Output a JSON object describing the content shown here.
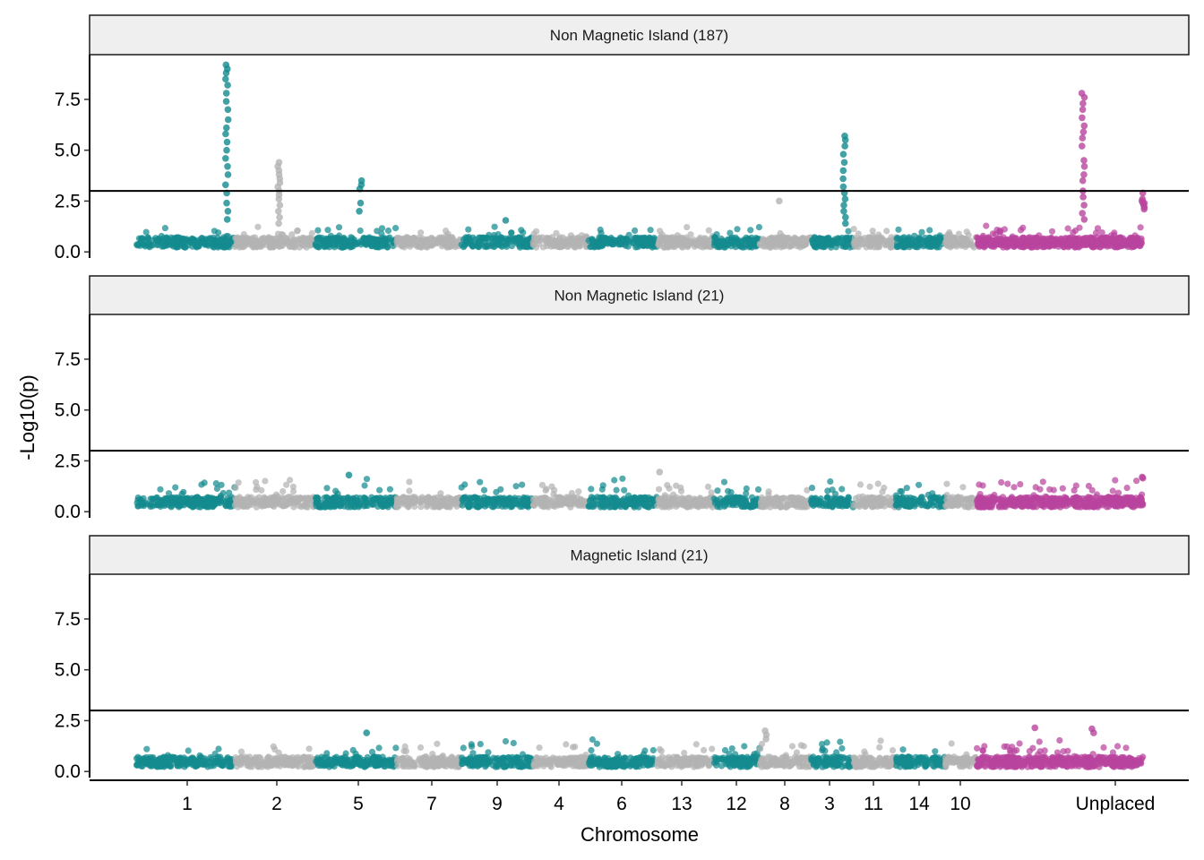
{
  "chart_data": {
    "type": "scatter",
    "subtype": "manhattan",
    "xlabel": "Chromosome",
    "ylabel": "-Log10(p)",
    "ylim": [
      -0.3,
      9.7
    ],
    "yticks": [
      "0.0",
      "2.5",
      "5.0",
      "7.5"
    ],
    "grid": false,
    "legend": "none",
    "threshold": 3.0,
    "colors": {
      "teal": "#138a8f",
      "grey": "#b3b3b3",
      "magenta": "#b8449e"
    },
    "chromosomes": [
      {
        "label": "1",
        "span": [
          0.0,
          1.0
        ],
        "color": "teal",
        "tick": 0.5
      },
      {
        "label": "2",
        "span": [
          1.0,
          2.0
        ],
        "color": "grey",
        "tick": 1.5
      },
      {
        "label": "5",
        "span": [
          2.0,
          3.0
        ],
        "color": "teal",
        "tick": 2.5
      },
      {
        "label": "7",
        "span": [
          3.0,
          4.0
        ],
        "color": "grey",
        "tick": 3.5
      },
      {
        "label": "9",
        "span": [
          4.0,
          5.0
        ],
        "color": "teal",
        "tick": 4.5
      },
      {
        "label": "4",
        "span": [
          5.0,
          6.0
        ],
        "color": "grey",
        "tick": 5.5
      },
      {
        "label": "6",
        "span": [
          6.0,
          7.0
        ],
        "color": "teal",
        "tick": 6.5
      },
      {
        "label": "13",
        "span": [
          7.0,
          8.0
        ],
        "color": "grey",
        "tick": 7.5
      },
      {
        "label": "12",
        "span": [
          8.0,
          9.0
        ],
        "color": "teal",
        "tick": 8.5
      },
      {
        "label": "8",
        "span": [
          9.0,
          10.0
        ],
        "color": "grey",
        "tick": 9.5
      },
      {
        "label": "3",
        "span": [
          10.0,
          11.0
        ],
        "color": "teal",
        "tick": 10.5
      },
      {
        "label": "11",
        "span": [
          11.0,
          12.0
        ],
        "color": "grey",
        "tick": 11.5
      },
      {
        "label": "14",
        "span": [
          12.0,
          13.0
        ],
        "color": "teal",
        "tick": 12.5
      },
      {
        "label": "10",
        "span": [
          13.0,
          14.0
        ],
        "color": "grey",
        "tick": 13.5
      },
      {
        "label": "Unplaced",
        "span": [
          14.0,
          15.0
        ],
        "color": "magenta",
        "tick": 14.5
      }
    ],
    "panels": [
      {
        "title": "Non Magnetic Island (187)",
        "baseline_max": 1.3,
        "peaks": [
          {
            "chrom": "1",
            "x": 0.92,
            "values": [
              9.2,
              9.0,
              8.8,
              8.5,
              8.2,
              7.8,
              7.4,
              7.0,
              6.5,
              6.1,
              5.8,
              5.4,
              5.0,
              4.6,
              4.2,
              3.8,
              3.3,
              2.9,
              2.4,
              2.0,
              1.6
            ]
          },
          {
            "chrom": "2",
            "x": 1.55,
            "values": [
              4.4,
              4.2,
              4.0,
              3.8,
              3.6,
              3.4,
              3.2,
              3.0,
              2.8,
              2.6,
              2.3,
              2.0,
              1.7,
              1.4
            ]
          },
          {
            "chrom": "5",
            "x": 2.56,
            "values": [
              3.5,
              3.3,
              3.1,
              2.4,
              2.0
            ]
          },
          {
            "chrom": "9",
            "x": 4.62,
            "values": [
              1.55
            ]
          },
          {
            "chrom": "8",
            "x": 9.38,
            "values": [
              2.5
            ]
          },
          {
            "chrom": "3",
            "x": 10.78,
            "values": [
              5.7,
              5.5,
              5.2,
              4.8,
              4.4,
              4.0,
              3.6,
              3.2,
              2.9,
              2.6,
              2.3,
              2.0,
              1.7,
              1.4
            ]
          },
          {
            "chrom": "Unplaced",
            "x": 14.64,
            "values": [
              7.8,
              7.6,
              7.3,
              7.0,
              6.6,
              6.2,
              5.9,
              5.6,
              5.2,
              4.5,
              4.2,
              3.8,
              3.5,
              3.0,
              2.7,
              2.3,
              1.9,
              1.6
            ]
          },
          {
            "chrom": "Unplaced",
            "x": 15.12,
            "values": [
              2.9,
              2.6,
              2.5,
              2.4,
              2.4,
              2.3,
              2.2,
              2.1
            ]
          }
        ]
      },
      {
        "title": "Non Magnetic Island (21)",
        "baseline_max": 1.7,
        "peaks": [
          {
            "chrom": "5",
            "x": 2.4,
            "values": [
              1.8
            ]
          },
          {
            "chrom": "13",
            "x": 7.05,
            "values": [
              1.95
            ]
          },
          {
            "chrom": "Unplaced",
            "x": 15.05,
            "values": [
              1.7,
              1.65
            ]
          }
        ]
      },
      {
        "title": "Magnetic Island (21)",
        "baseline_max": 1.6,
        "peaks": [
          {
            "chrom": "5",
            "x": 2.65,
            "values": [
              1.9
            ]
          },
          {
            "chrom": "8",
            "x": 9.12,
            "values": [
              2.0,
              1.8,
              1.6
            ]
          },
          {
            "chrom": "Unplaced",
            "x": 14.35,
            "values": [
              2.15
            ]
          },
          {
            "chrom": "Unplaced",
            "x": 14.7,
            "values": [
              2.1,
              1.9
            ]
          }
        ]
      }
    ]
  }
}
